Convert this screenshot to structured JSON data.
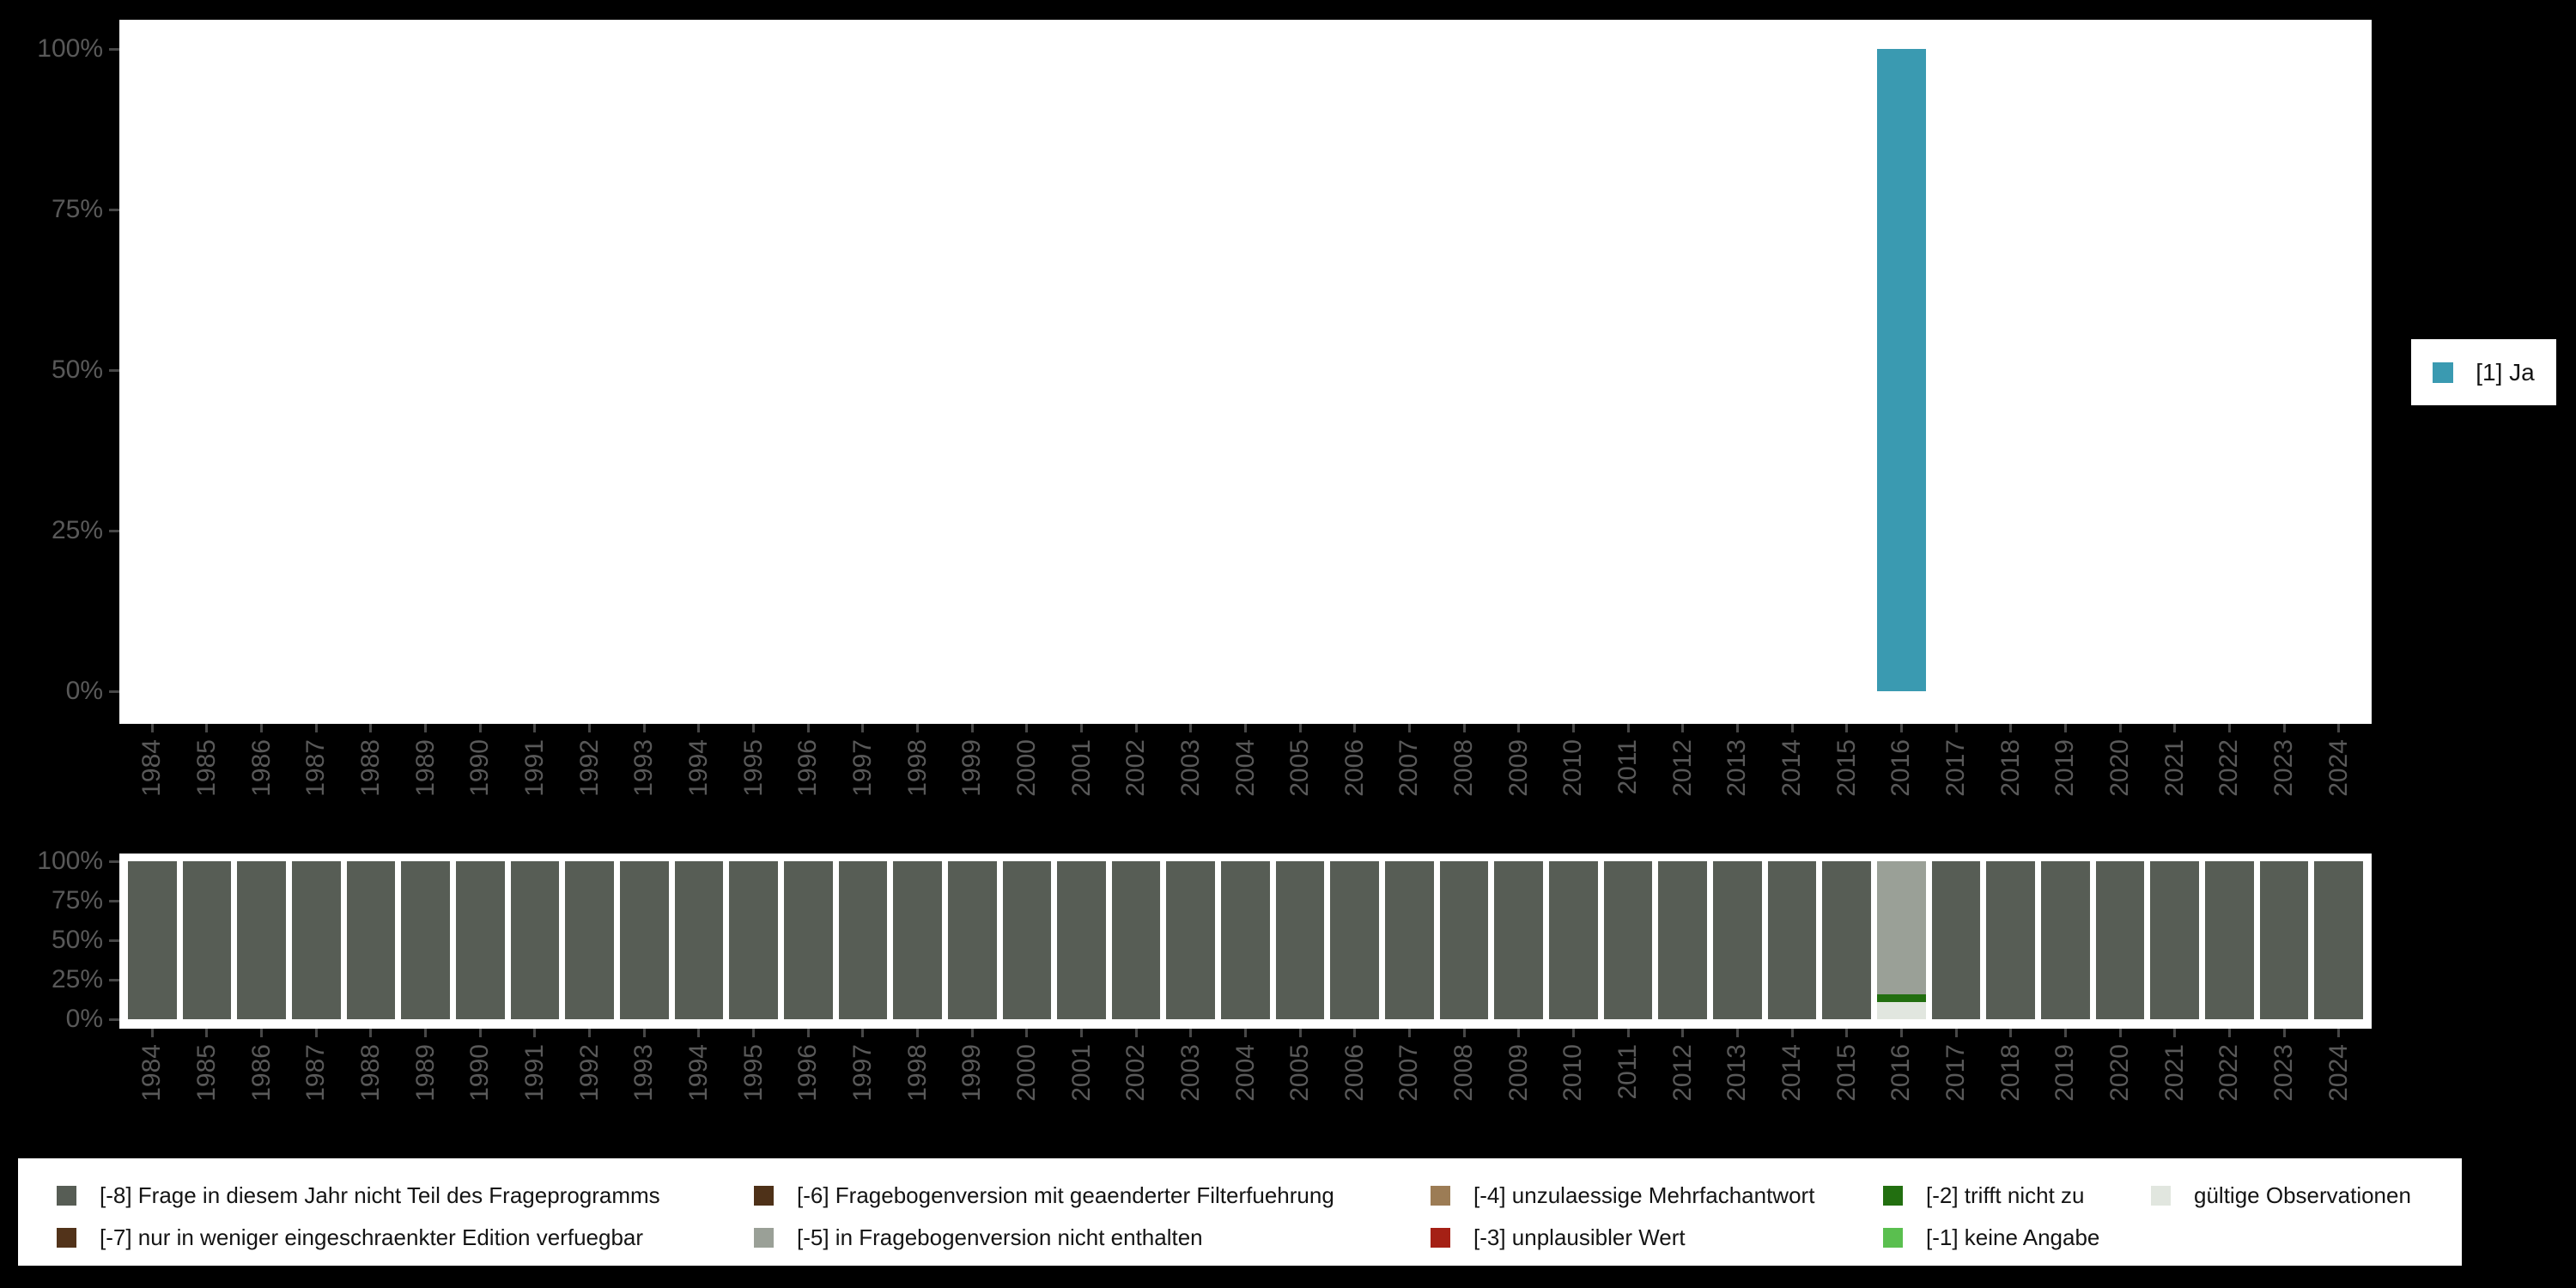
{
  "colors": {
    "background": "#000000",
    "plot_background": "#ffffff",
    "axis_text": "#595959",
    "tick": "#474747",
    "legend_text": "#141414"
  },
  "chart_data": [
    {
      "type": "bar",
      "title": "",
      "xlabel": "",
      "ylabel": "",
      "ylim": [
        0,
        100
      ],
      "yticks": [
        [
          0,
          "0%"
        ],
        [
          25,
          "25%"
        ],
        [
          50,
          "50%"
        ],
        [
          75,
          "75%"
        ],
        [
          100,
          "100%"
        ]
      ],
      "legend_position": "right",
      "categories": [
        1984,
        1985,
        1986,
        1987,
        1988,
        1989,
        1990,
        1991,
        1992,
        1993,
        1994,
        1995,
        1996,
        1997,
        1998,
        1999,
        2000,
        2001,
        2002,
        2003,
        2004,
        2005,
        2006,
        2007,
        2008,
        2009,
        2010,
        2011,
        2012,
        2013,
        2014,
        2015,
        2016,
        2017,
        2018,
        2019,
        2020,
        2021,
        2022,
        2023,
        2024
      ],
      "series": [
        {
          "name": "[1] Ja",
          "color": "#3a9ab1",
          "values": [
            null,
            null,
            null,
            null,
            null,
            null,
            null,
            null,
            null,
            null,
            null,
            null,
            null,
            null,
            null,
            null,
            null,
            null,
            null,
            null,
            null,
            null,
            null,
            null,
            null,
            null,
            null,
            null,
            null,
            null,
            null,
            null,
            100,
            null,
            null,
            null,
            null,
            null,
            null,
            null,
            null
          ]
        }
      ]
    },
    {
      "type": "bar",
      "title": "",
      "xlabel": "",
      "ylabel": "",
      "ylim": [
        0,
        100
      ],
      "yticks": [
        [
          0,
          "0%"
        ],
        [
          25,
          "25%"
        ],
        [
          50,
          "50%"
        ],
        [
          75,
          "75%"
        ],
        [
          100,
          "100%"
        ]
      ],
      "legend_position": "bottom",
      "stacked": true,
      "categories": [
        1984,
        1985,
        1986,
        1987,
        1988,
        1989,
        1990,
        1991,
        1992,
        1993,
        1994,
        1995,
        1996,
        1997,
        1998,
        1999,
        2000,
        2001,
        2002,
        2003,
        2004,
        2005,
        2006,
        2007,
        2008,
        2009,
        2010,
        2011,
        2012,
        2013,
        2014,
        2015,
        2016,
        2017,
        2018,
        2019,
        2020,
        2021,
        2022,
        2023,
        2024
      ],
      "series": [
        {
          "name": "[-8] Frage in diesem Jahr nicht Teil des Frageprogramms",
          "color": "#575d55",
          "values": [
            100,
            100,
            100,
            100,
            100,
            100,
            100,
            100,
            100,
            100,
            100,
            100,
            100,
            100,
            100,
            100,
            100,
            100,
            100,
            100,
            100,
            100,
            100,
            100,
            100,
            100,
            100,
            100,
            100,
            100,
            100,
            100,
            0,
            100,
            100,
            100,
            100,
            100,
            100,
            100,
            100
          ]
        },
        {
          "name": "[-5] in Fragebogenversion nicht enthalten",
          "color": "#9aa097",
          "values": [
            0,
            0,
            0,
            0,
            0,
            0,
            0,
            0,
            0,
            0,
            0,
            0,
            0,
            0,
            0,
            0,
            0,
            0,
            0,
            0,
            0,
            0,
            0,
            0,
            0,
            0,
            0,
            0,
            0,
            0,
            0,
            0,
            84,
            0,
            0,
            0,
            0,
            0,
            0,
            0,
            0
          ]
        },
        {
          "name": "[-2] trifft nicht zu",
          "color": "#226f10",
          "values": [
            0,
            0,
            0,
            0,
            0,
            0,
            0,
            0,
            0,
            0,
            0,
            0,
            0,
            0,
            0,
            0,
            0,
            0,
            0,
            0,
            0,
            0,
            0,
            0,
            0,
            0,
            0,
            0,
            0,
            0,
            0,
            0,
            5,
            0,
            0,
            0,
            0,
            0,
            0,
            0,
            0
          ]
        },
        {
          "name": "gültige Observationen",
          "color": "#e1e6df",
          "values": [
            0,
            0,
            0,
            0,
            0,
            0,
            0,
            0,
            0,
            0,
            0,
            0,
            0,
            0,
            0,
            0,
            0,
            0,
            0,
            0,
            0,
            0,
            0,
            0,
            0,
            0,
            0,
            0,
            0,
            0,
            0,
            0,
            11,
            0,
            0,
            0,
            0,
            0,
            0,
            0,
            0
          ]
        }
      ]
    }
  ],
  "answers_legend": {
    "items": [
      {
        "label": "[1] Ja",
        "color": "#3a9ab1"
      }
    ]
  },
  "missing_legend": {
    "items": [
      {
        "label": "[-8] Frage in diesem Jahr nicht Teil des Frageprogramms",
        "color": "#575d55",
        "col": 0,
        "row": 0
      },
      {
        "label": "[-7] nur in weniger eingeschraenkter Edition verfuegbar",
        "color": "#52331a",
        "col": 0,
        "row": 1
      },
      {
        "label": "[-6] Fragebogenversion mit geaenderter Filterfuehrung",
        "color": "#4e3118",
        "col": 1,
        "row": 0
      },
      {
        "label": "[-5] in Fragebogenversion nicht enthalten",
        "color": "#9aa097",
        "col": 1,
        "row": 1
      },
      {
        "label": "[-4] unzulaessige Mehrfachantwort",
        "color": "#9c7c55",
        "col": 2,
        "row": 0
      },
      {
        "label": "[-3] unplausibler Wert",
        "color": "#a52015",
        "col": 2,
        "row": 1
      },
      {
        "label": "[-2] trifft nicht zu",
        "color": "#226f10",
        "col": 3,
        "row": 0
      },
      {
        "label": "[-1] keine Angabe",
        "color": "#5abf4f",
        "col": 3,
        "row": 1
      },
      {
        "label": "gültige Observationen",
        "color": "#e1e6df",
        "col": 4,
        "row": 0
      }
    ]
  }
}
